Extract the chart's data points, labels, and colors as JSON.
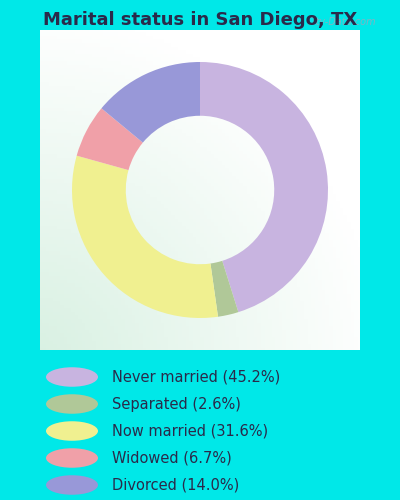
{
  "title": "Marital status in San Diego, TX",
  "slices": [
    {
      "label": "Never married (45.2%)",
      "value": 45.2,
      "color": "#c8b4e0"
    },
    {
      "label": "Separated (2.6%)",
      "value": 2.6,
      "color": "#b0c898"
    },
    {
      "label": "Now married (31.6%)",
      "value": 31.6,
      "color": "#f0f090"
    },
    {
      "label": "Widowed (6.7%)",
      "value": 6.7,
      "color": "#f0a0a8"
    },
    {
      "label": "Divorced (14.0%)",
      "value": 14.0,
      "color": "#9898d8"
    }
  ],
  "title_fontsize": 13,
  "legend_fontsize": 10.5,
  "bg_outer": "#00e8e8",
  "watermark": "City-Data.com",
  "start_angle": 90,
  "text_color": "#2a2a4a"
}
